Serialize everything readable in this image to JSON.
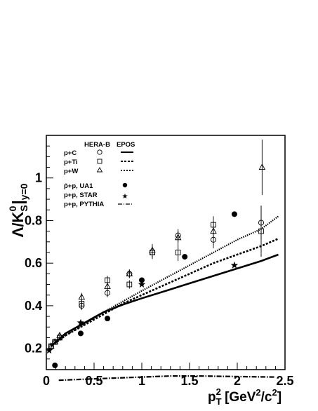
{
  "chart_data": {
    "type": "scatter",
    "title": "",
    "xlabel": {
      "base": "p",
      "sub": "T",
      "sup": "2",
      "unit_prefix": " [GeV",
      "unit_sup1": "2",
      "unit_mid": "/c",
      "unit_sup2": "2",
      "unit_suffix": "]"
    },
    "ylabel": {
      "main": "Λ/K",
      "sub": "S",
      "sup": "0",
      "bar": "|",
      "cond": "y=0"
    },
    "xlim": [
      0,
      2.5
    ],
    "ylim": [
      0.1,
      1.2
    ],
    "xticks": [
      0,
      0.5,
      1,
      1.5,
      2,
      2.5
    ],
    "xtick_labels": [
      "0",
      "0.5",
      "1",
      "1.5",
      "2",
      "2.5"
    ],
    "yticks": [
      0.2,
      0.4,
      0.6,
      0.8,
      1.0
    ],
    "ytick_labels": [
      "0.2",
      "0.4",
      "0.6",
      "0.8",
      "1"
    ],
    "grid": false,
    "legend": {
      "position": "top-left",
      "header_herab": "HERA-B",
      "header_epos": "EPOS",
      "entries": [
        {
          "label": "p+C",
          "marker": "circle",
          "line": "solid"
        },
        {
          "label": "p+Ti",
          "marker": "square",
          "line": "dashed"
        },
        {
          "label": "p+W",
          "marker": "triangle",
          "line": "dotted"
        },
        {
          "label": "p̄+p, UA1",
          "marker": "filled-circle"
        },
        {
          "label": "p+p, STAR",
          "marker": "star"
        },
        {
          "label": "p+p, PYTHIA",
          "line": "dashdot"
        }
      ]
    },
    "series": [
      {
        "name": "p+C",
        "kind": "points",
        "marker": "circle",
        "points": [
          [
            0.05,
            0.21,
            0.01
          ],
          [
            0.09,
            0.23,
            0.01
          ],
          [
            0.14,
            0.25,
            0.01
          ],
          [
            0.37,
            0.4,
            0.02
          ],
          [
            0.64,
            0.46,
            0.02
          ],
          [
            0.87,
            0.55,
            0.02
          ],
          [
            1.11,
            0.65,
            0.03
          ],
          [
            1.38,
            0.73,
            0.03
          ],
          [
            1.75,
            0.71,
            0.04
          ],
          [
            2.25,
            0.79,
            0.08
          ]
        ]
      },
      {
        "name": "p+Ti",
        "kind": "points",
        "marker": "square",
        "points": [
          [
            0.05,
            0.21,
            0.01
          ],
          [
            0.09,
            0.23,
            0.01
          ],
          [
            0.14,
            0.25,
            0.01
          ],
          [
            0.37,
            0.41,
            0.02
          ],
          [
            0.64,
            0.52,
            0.02
          ],
          [
            0.87,
            0.5,
            0.02
          ],
          [
            1.11,
            0.65,
            0.03
          ],
          [
            1.38,
            0.65,
            0.04
          ],
          [
            1.75,
            0.78,
            0.04
          ],
          [
            2.25,
            0.75,
            0.12
          ]
        ]
      },
      {
        "name": "p+W",
        "kind": "points",
        "marker": "triangle",
        "points": [
          [
            0.05,
            0.21,
            0.01
          ],
          [
            0.09,
            0.23,
            0.01
          ],
          [
            0.14,
            0.26,
            0.01
          ],
          [
            0.37,
            0.44,
            0.02
          ],
          [
            0.64,
            0.49,
            0.02
          ],
          [
            0.87,
            0.55,
            0.02
          ],
          [
            1.11,
            0.66,
            0.03
          ],
          [
            1.38,
            0.72,
            0.03
          ],
          [
            1.75,
            0.75,
            0.04
          ],
          [
            2.26,
            1.05,
            0.13
          ]
        ]
      },
      {
        "name": "p̄+p, UA1",
        "kind": "points",
        "marker": "filled-circle",
        "points": [
          [
            0.09,
            0.12,
            0
          ],
          [
            0.36,
            0.27,
            0
          ],
          [
            0.64,
            0.34,
            0
          ],
          [
            1.0,
            0.52,
            0
          ],
          [
            1.45,
            0.63,
            0
          ],
          [
            1.97,
            0.83,
            0
          ]
        ]
      },
      {
        "name": "p+p, STAR",
        "kind": "points",
        "marker": "star",
        "points": [
          [
            0.03,
            0.19,
            0
          ],
          [
            0.36,
            0.32,
            0
          ],
          [
            1.0,
            0.5,
            0
          ],
          [
            1.97,
            0.59,
            0
          ]
        ]
      },
      {
        "name": "p+C EPOS",
        "kind": "line",
        "line": "solid",
        "points": [
          [
            0.05,
            0.21
          ],
          [
            0.2,
            0.27
          ],
          [
            0.4,
            0.32
          ],
          [
            0.6,
            0.37
          ],
          [
            0.8,
            0.405
          ],
          [
            1.0,
            0.435
          ],
          [
            1.25,
            0.47
          ],
          [
            1.5,
            0.505
          ],
          [
            1.75,
            0.54
          ],
          [
            2.0,
            0.575
          ],
          [
            2.25,
            0.61
          ],
          [
            2.43,
            0.64
          ]
        ]
      },
      {
        "name": "p+Ti EPOS",
        "kind": "line",
        "line": "dotted-light",
        "points": [
          [
            0.05,
            0.21
          ],
          [
            0.2,
            0.26
          ],
          [
            0.4,
            0.315
          ],
          [
            0.6,
            0.37
          ],
          [
            0.8,
            0.42
          ],
          [
            1.0,
            0.47
          ],
          [
            1.25,
            0.53
          ],
          [
            1.5,
            0.59
          ],
          [
            1.75,
            0.65
          ],
          [
            2.0,
            0.71
          ],
          [
            2.25,
            0.76
          ],
          [
            2.43,
            0.82
          ]
        ]
      },
      {
        "name": "p+W EPOS",
        "kind": "line",
        "line": "dotted",
        "points": [
          [
            0.05,
            0.21
          ],
          [
            0.2,
            0.26
          ],
          [
            0.4,
            0.31
          ],
          [
            0.6,
            0.36
          ],
          [
            0.8,
            0.41
          ],
          [
            1.0,
            0.45
          ],
          [
            1.25,
            0.5
          ],
          [
            1.5,
            0.55
          ],
          [
            1.75,
            0.6
          ],
          [
            2.0,
            0.64
          ],
          [
            2.25,
            0.68
          ],
          [
            2.43,
            0.715
          ]
        ]
      },
      {
        "name": "p+p, PYTHIA",
        "kind": "line",
        "line": "dashdot",
        "points": [
          [
            0.13,
            0.05
          ],
          [
            0.4,
            0.055
          ],
          [
            0.7,
            0.06
          ],
          [
            1.0,
            0.065
          ],
          [
            1.3,
            0.07
          ],
          [
            1.6,
            0.07
          ],
          [
            1.9,
            0.068
          ],
          [
            2.2,
            0.066
          ],
          [
            2.4,
            0.065
          ]
        ]
      }
    ]
  }
}
